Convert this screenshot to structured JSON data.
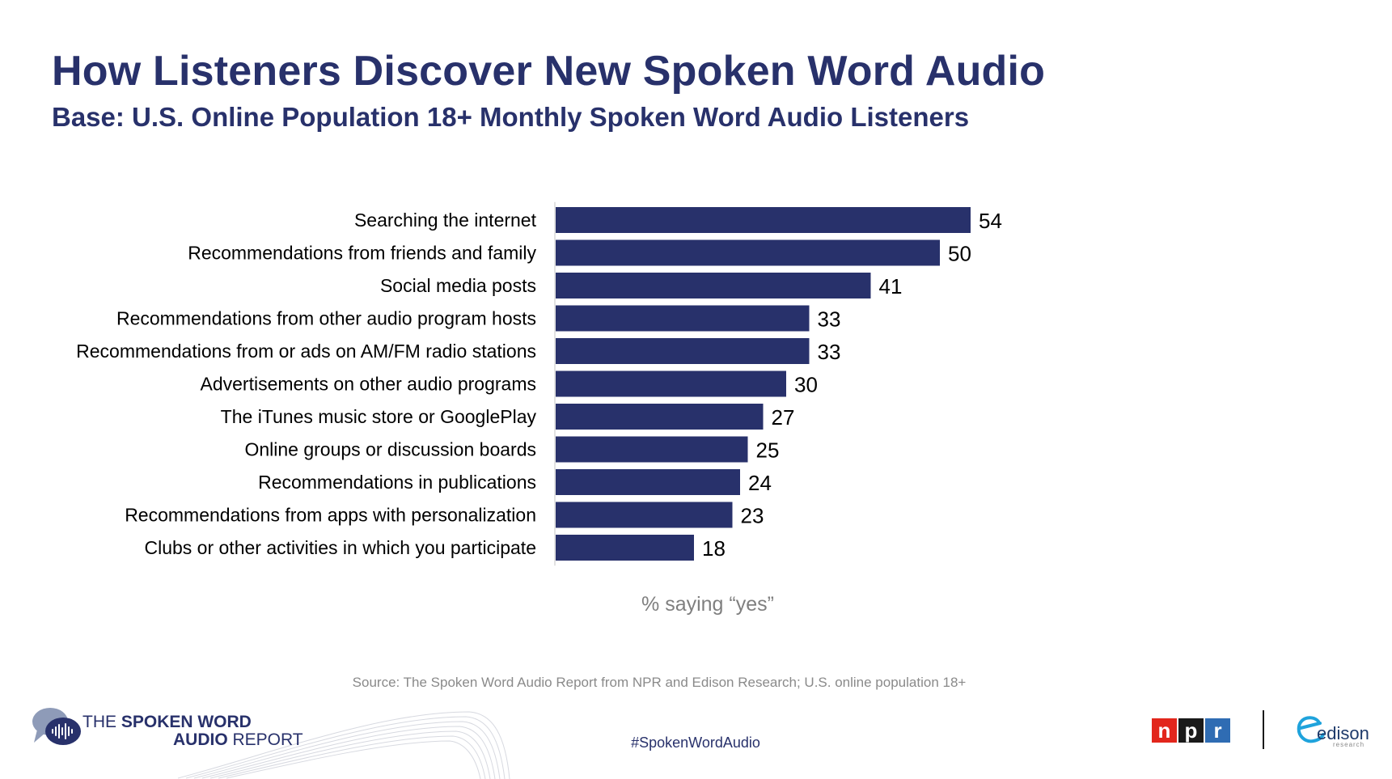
{
  "colors": {
    "title": "#28316b",
    "bar": "#28316b",
    "axis_line": "#d9d9d9",
    "label": "#000000",
    "note": "#7f7f7f",
    "npr_n": "#e2261c",
    "npr_p": "#1a1a1a",
    "npr_r": "#2f6cb3"
  },
  "slide": {
    "title": "How Listeners Discover New Spoken Word Audio",
    "subtitle": "Base: U.S. Online Population 18+ Monthly Spoken Word Audio Listeners",
    "x_note": "% saying “yes”",
    "source": "Source: The Spoken Word Audio Report from NPR and Edison Research; U.S. online population 18+",
    "hashtag": "#SpokenWordAudio"
  },
  "footer": {
    "report_logo_line1_light": "THE ",
    "report_logo_line1_bold": "SPOKEN WORD",
    "report_logo_line2_bold": "AUDIO ",
    "report_logo_line2_light": "REPORT",
    "npr_letters": [
      "n",
      "p",
      "r"
    ],
    "edison_word": "edison",
    "edison_sub": "research",
    "icons": [
      "speech-bubble-waveform-icon",
      "npr-logo",
      "edison-research-logo"
    ]
  },
  "chart_data": {
    "type": "bar",
    "orientation": "horizontal",
    "title": "How Listeners Discover New Spoken Word Audio",
    "subtitle": "Base: U.S. Online Population 18+ Monthly Spoken Word Audio Listeners",
    "xlabel": "% saying “yes”",
    "ylabel": "",
    "xlim": [
      0,
      100
    ],
    "grid": false,
    "legend": "none",
    "categories": [
      "Searching the internet",
      "Recommendations from friends and family",
      "Social media posts",
      "Recommendations from other audio program hosts",
      "Recommendations from or ads on AM/FM radio stations",
      "Advertisements on other audio programs",
      "The iTunes music store or GooglePlay",
      "Online groups or discussion boards",
      "Recommendations in publications",
      "Recommendations from apps with personalization",
      "Clubs or other activities in which you participate"
    ],
    "values": [
      54,
      50,
      41,
      33,
      33,
      30,
      27,
      25,
      24,
      23,
      18
    ]
  }
}
